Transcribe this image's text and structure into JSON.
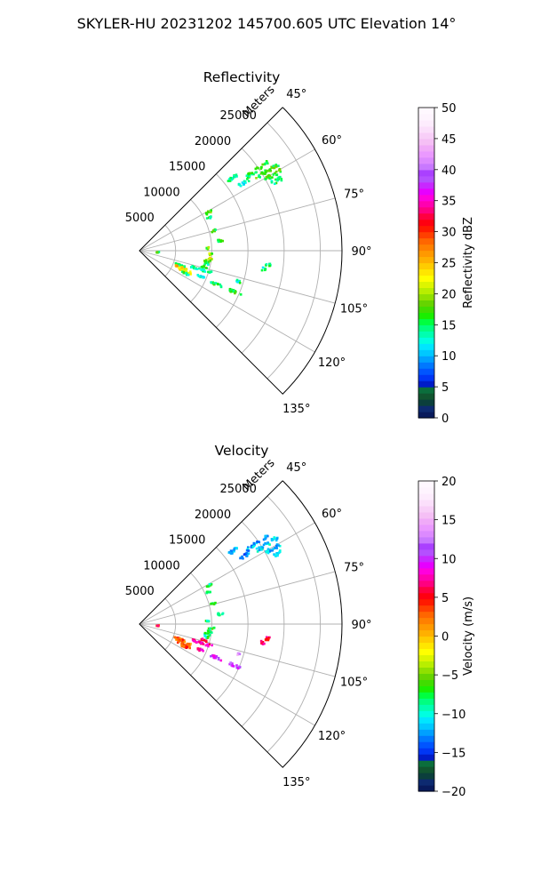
{
  "figure": {
    "title": "SKYLER-HU  20231202  145700.605 UTC Elevation 14°"
  },
  "chart_data": [
    {
      "type": "heatmap",
      "subtype": "polar-sector (radar PPI)",
      "title": "Reflectivity",
      "radial_label": "Meters",
      "r_ticks": [
        5000,
        10000,
        15000,
        20000,
        25000
      ],
      "r_tick_labels": [
        "5000",
        "10000",
        "15000",
        "20000",
        "25000"
      ],
      "theta_ticks": [
        45,
        60,
        75,
        90,
        105,
        120,
        135
      ],
      "theta_tick_labels": [
        "45°",
        "60°",
        "75°",
        "90°",
        "105°",
        "120°",
        "135°"
      ],
      "theta_range": [
        45,
        135
      ],
      "r_range": [
        0,
        28000
      ],
      "grid": true,
      "colorbar": {
        "label": "Reflectivity dBZ",
        "range": [
          0,
          50
        ],
        "ticks": [
          "0",
          "5",
          "10",
          "15",
          "20",
          "25",
          "30",
          "35",
          "40",
          "45",
          "50"
        ],
        "colors": [
          "#081a5c",
          "#0d2a70",
          "#0b3f3c",
          "#11552f",
          "#0b6e3c",
          "#001cc8",
          "#0036f5",
          "#0055ff",
          "#0078ff",
          "#00a0ff",
          "#00c8ff",
          "#00e6ff",
          "#00ffe0",
          "#00ffb0",
          "#00ff80",
          "#00ff40",
          "#1aee00",
          "#40dd00",
          "#66d400",
          "#90e000",
          "#b8ee00",
          "#ddf500",
          "#ffff00",
          "#ffe600",
          "#ffcc00",
          "#ffb000",
          "#ff9900",
          "#ff8000",
          "#ff6600",
          "#ff4000",
          "#ff1a00",
          "#ff0010",
          "#ff0040",
          "#ff0080",
          "#ff00b0",
          "#ff00dd",
          "#e600ff",
          "#c828ff",
          "#b450ff",
          "#aa40ff",
          "#c878ff",
          "#dc8aff",
          "#ea99ff",
          "#f0aaf8",
          "#f5bff5",
          "#f8cff8",
          "#fbdffb",
          "#fdecfd",
          "#fef4fe",
          "#fff8ff"
        ]
      },
      "echoes": [
        {
          "az": 52,
          "r0": 15500,
          "r1": 17200,
          "dbz": 14
        },
        {
          "az": 55.5,
          "r0": 18000,
          "r1": 21500,
          "dbz": 16
        },
        {
          "az": 58,
          "r0": 19000,
          "r1": 22500,
          "dbz": 17
        },
        {
          "az": 60.5,
          "r0": 20000,
          "r1": 22500,
          "dbz": 17
        },
        {
          "az": 63,
          "r0": 20500,
          "r1": 22000,
          "dbz": 15
        },
        {
          "az": 57,
          "r0": 16500,
          "r1": 18000,
          "dbz": 13
        },
        {
          "az": 61,
          "r0": 10500,
          "r1": 11400,
          "dbz": 17
        },
        {
          "az": 65,
          "r0": 10200,
          "r1": 11000,
          "dbz": 15
        },
        {
          "az": 75,
          "r0": 10200,
          "r1": 10900,
          "dbz": 16
        },
        {
          "az": 83,
          "r0": 10800,
          "r1": 11700,
          "dbz": 17
        },
        {
          "az": 88,
          "r0": 9200,
          "r1": 9700,
          "dbz": 18
        },
        {
          "az": 93,
          "r0": 9600,
          "r1": 10400,
          "dbz": 19
        },
        {
          "az": 96,
          "r0": 9500,
          "r1": 10200,
          "dbz": 22
        },
        {
          "az": 98.5,
          "r0": 9100,
          "r1": 9900,
          "dbz": 18
        },
        {
          "az": 101,
          "r0": 9000,
          "r1": 9800,
          "dbz": 15
        },
        {
          "az": 104,
          "r0": 8800,
          "r1": 9600,
          "dbz": 16
        },
        {
          "az": 107,
          "r0": 7500,
          "r1": 10500,
          "dbz": 14
        },
        {
          "az": 110,
          "r0": 5200,
          "r1": 6600,
          "dbz": 14
        },
        {
          "az": 112,
          "r0": 5400,
          "r1": 7600,
          "dbz": 24
        },
        {
          "az": 114.5,
          "r0": 5800,
          "r1": 7800,
          "dbz": 23
        },
        {
          "az": 116.5,
          "r0": 6500,
          "r1": 7600,
          "dbz": 15
        },
        {
          "az": 113,
          "r0": 8700,
          "r1": 9700,
          "dbz": 13
        },
        {
          "az": 113.5,
          "r0": 10800,
          "r1": 12400,
          "dbz": 15
        },
        {
          "az": 113.5,
          "r0": 13500,
          "r1": 15300,
          "dbz": 16
        },
        {
          "az": 107,
          "r0": 14000,
          "r1": 14600,
          "dbz": 14
        },
        {
          "az": 96.5,
          "r0": 17400,
          "r1": 18400,
          "dbz": 16
        },
        {
          "az": 98.5,
          "r0": 17000,
          "r1": 17700,
          "dbz": 14
        },
        {
          "az": 95,
          "r0": 2400,
          "r1": 2700,
          "dbz": 17
        }
      ]
    },
    {
      "type": "heatmap",
      "subtype": "polar-sector (radar PPI)",
      "title": "Velocity",
      "radial_label": "Meters",
      "r_ticks": [
        5000,
        10000,
        15000,
        20000,
        25000
      ],
      "r_tick_labels": [
        "5000",
        "10000",
        "15000",
        "20000",
        "25000"
      ],
      "theta_ticks": [
        45,
        60,
        75,
        90,
        105,
        120,
        135
      ],
      "theta_tick_labels": [
        "45°",
        "60°",
        "75°",
        "90°",
        "105°",
        "120°",
        "135°"
      ],
      "theta_range": [
        45,
        135
      ],
      "r_range": [
        0,
        28000
      ],
      "grid": true,
      "colorbar": {
        "label": "Velocity (m/s)",
        "range": [
          -20,
          20
        ],
        "ticks": [
          "−20",
          "−15",
          "−10",
          "−5",
          "0",
          "5",
          "10",
          "15",
          "20"
        ],
        "colors": [
          "#081a5c",
          "#0d2a70",
          "#0b3f3c",
          "#11552f",
          "#0b6e3c",
          "#001cc8",
          "#0036f5",
          "#0055ff",
          "#0078ff",
          "#00a0ff",
          "#00c8ff",
          "#00e6ff",
          "#00ffe0",
          "#00ffb0",
          "#00ff80",
          "#00ff40",
          "#1aee00",
          "#40dd00",
          "#66d400",
          "#90e000",
          "#b8ee00",
          "#ddf500",
          "#ffff00",
          "#ffe600",
          "#ffcc00",
          "#ffb000",
          "#ff9900",
          "#ff8000",
          "#ff6600",
          "#ff4000",
          "#ff1a00",
          "#ff0010",
          "#ff0040",
          "#ff0080",
          "#ff00b0",
          "#ff00dd",
          "#e600ff",
          "#c828ff",
          "#b450ff",
          "#aa40ff",
          "#c878ff",
          "#dc8aff",
          "#ea99ff",
          "#f0aaf8",
          "#f5bff5",
          "#f8cff8",
          "#fbdffb",
          "#fdecfd",
          "#fef4fe",
          "#fff8ff"
        ]
      },
      "echoes": [
        {
          "az": 52,
          "r0": 15500,
          "r1": 17200,
          "vel": -12
        },
        {
          "az": 55.5,
          "r0": 18000,
          "r1": 21500,
          "vel": -12
        },
        {
          "az": 58,
          "r0": 19000,
          "r1": 22500,
          "vel": -11
        },
        {
          "az": 60.5,
          "r0": 20000,
          "r1": 22500,
          "vel": -12
        },
        {
          "az": 63,
          "r0": 20500,
          "r1": 22000,
          "vel": -11
        },
        {
          "az": 57,
          "r0": 16500,
          "r1": 18000,
          "vel": -13
        },
        {
          "az": 61,
          "r0": 10500,
          "r1": 11400,
          "vel": -8
        },
        {
          "az": 65,
          "r0": 10200,
          "r1": 11000,
          "vel": -8
        },
        {
          "az": 75,
          "r0": 10200,
          "r1": 10900,
          "vel": -8
        },
        {
          "az": 83,
          "r0": 10800,
          "r1": 11700,
          "vel": -8
        },
        {
          "az": 88,
          "r0": 9200,
          "r1": 9700,
          "vel": -8
        },
        {
          "az": 93,
          "r0": 9600,
          "r1": 10400,
          "vel": -7
        },
        {
          "az": 96,
          "r0": 9500,
          "r1": 10200,
          "vel": -8
        },
        {
          "az": 98.5,
          "r0": 9100,
          "r1": 9900,
          "vel": -9
        },
        {
          "az": 101,
          "r0": 9000,
          "r1": 9800,
          "vel": -8
        },
        {
          "az": 104,
          "r0": 8800,
          "r1": 9600,
          "vel": 6
        },
        {
          "az": 107,
          "r0": 7500,
          "r1": 10500,
          "vel": 7
        },
        {
          "az": 110,
          "r0": 5200,
          "r1": 6600,
          "vel": 3
        },
        {
          "az": 112,
          "r0": 5400,
          "r1": 7600,
          "vel": 2
        },
        {
          "az": 114.5,
          "r0": 5800,
          "r1": 7800,
          "vel": 3
        },
        {
          "az": 116.5,
          "r0": 6500,
          "r1": 7600,
          "vel": 4
        },
        {
          "az": 113,
          "r0": 8700,
          "r1": 9700,
          "vel": 8
        },
        {
          "az": 113.5,
          "r0": 10800,
          "r1": 12400,
          "vel": 10
        },
        {
          "az": 113.5,
          "r0": 13500,
          "r1": 15300,
          "vel": 11
        },
        {
          "az": 107,
          "r0": 14000,
          "r1": 14600,
          "vel": 14
        },
        {
          "az": 96.5,
          "r0": 17400,
          "r1": 18400,
          "vel": 6
        },
        {
          "az": 98.5,
          "r0": 17000,
          "r1": 17700,
          "vel": 7
        },
        {
          "az": 95,
          "r0": 2400,
          "r1": 2700,
          "vel": 5
        }
      ]
    }
  ]
}
